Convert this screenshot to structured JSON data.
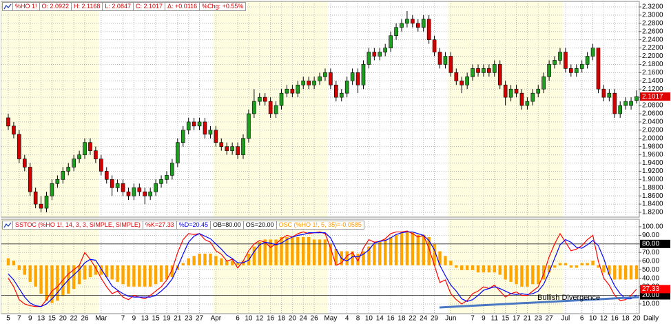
{
  "chart_data": [
    {
      "type": "candlestick",
      "header": [
        "%HO 1!",
        "O: 2.0922",
        "H: 2.1168",
        "L: 2.0847",
        "C: 2.1017",
        "Δ: +0.0116",
        "%Chg: +0.55%"
      ],
      "header_color": "#cc0000",
      "interval": "Daily",
      "categories": [
        "5",
        null,
        "7",
        null,
        "9",
        null,
        "13",
        null,
        "15",
        null,
        "20",
        null,
        "22",
        null,
        "26",
        null,
        null,
        "Mar",
        null,
        null,
        null,
        "7",
        null,
        "9",
        null,
        "13",
        null,
        "15",
        null,
        "19",
        null,
        "21",
        null,
        "23",
        null,
        "27",
        null,
        null,
        "Apr",
        null,
        null,
        null,
        "6",
        null,
        "10",
        null,
        "12",
        null,
        "16",
        null,
        "18",
        null,
        "20",
        null,
        "24",
        null,
        "26",
        null,
        null,
        "May",
        null,
        null,
        "4",
        null,
        "8",
        null,
        "10",
        null,
        "14",
        null,
        "16",
        null,
        "18",
        null,
        "22",
        null,
        "24",
        null,
        "29",
        null,
        null,
        "Jun",
        null,
        null,
        null,
        "7",
        null,
        "9",
        null,
        "11",
        null,
        "15",
        null,
        "17",
        null,
        "21",
        null,
        "23",
        null,
        "27",
        null,
        null,
        "Jul",
        null,
        null,
        "6",
        null,
        "10",
        null,
        "12",
        null,
        "16",
        null,
        "18",
        null,
        "20"
      ],
      "open": [
        2.05,
        2.03,
        2.01,
        1.95,
        1.93,
        1.87,
        1.84,
        1.83,
        1.86,
        1.89,
        1.9,
        1.92,
        1.93,
        1.95,
        1.96,
        1.99,
        1.97,
        1.95,
        1.92,
        1.9,
        1.88,
        1.89,
        1.87,
        1.86,
        1.88,
        1.87,
        1.86,
        1.87,
        1.89,
        1.9,
        1.91,
        1.94,
        1.99,
        2.02,
        2.04,
        2.03,
        2.04,
        2.01,
        2.02,
        1.99,
        1.98,
        1.97,
        1.98,
        1.96,
        2.0,
        2.06,
        2.09,
        2.1,
        2.09,
        2.06,
        2.08,
        2.11,
        2.12,
        2.11,
        2.13,
        2.14,
        2.13,
        2.14,
        2.15,
        2.16,
        2.13,
        2.1,
        2.11,
        2.14,
        2.16,
        2.13,
        2.18,
        2.21,
        2.2,
        2.21,
        2.22,
        2.25,
        2.27,
        2.28,
        2.29,
        2.28,
        2.27,
        2.29,
        2.24,
        2.21,
        2.18,
        2.2,
        2.16,
        2.14,
        2.13,
        2.15,
        2.17,
        2.16,
        2.17,
        2.16,
        2.18,
        2.13,
        2.1,
        2.12,
        2.11,
        2.08,
        2.09,
        2.11,
        2.12,
        2.15,
        2.18,
        2.19,
        2.21,
        2.17,
        2.16,
        2.17,
        2.18,
        2.2,
        2.22,
        2.12,
        2.1,
        2.11,
        2.06,
        2.08,
        2.08,
        2.0922
      ],
      "high": [
        2.06,
        2.04,
        2.02,
        1.96,
        1.94,
        1.88,
        1.86,
        1.87,
        1.9,
        1.91,
        1.93,
        1.94,
        1.96,
        1.97,
        2.0,
        2.0,
        1.98,
        1.96,
        1.93,
        1.91,
        1.9,
        1.9,
        1.88,
        1.89,
        1.89,
        1.88,
        1.88,
        1.9,
        1.91,
        1.92,
        1.95,
        2.0,
        2.03,
        2.05,
        2.05,
        2.05,
        2.05,
        2.03,
        2.03,
        2.0,
        1.99,
        1.99,
        1.99,
        2.01,
        2.07,
        2.12,
        2.11,
        2.11,
        2.1,
        2.09,
        2.12,
        2.13,
        2.13,
        2.14,
        2.15,
        2.15,
        2.15,
        2.16,
        2.17,
        2.17,
        2.14,
        2.12,
        2.15,
        2.17,
        2.17,
        2.19,
        2.22,
        2.22,
        2.22,
        2.23,
        2.26,
        2.28,
        2.29,
        2.31,
        2.3,
        2.29,
        2.3,
        2.3,
        2.25,
        2.22,
        2.21,
        2.21,
        2.17,
        2.15,
        2.16,
        2.18,
        2.18,
        2.18,
        2.18,
        2.19,
        2.19,
        2.14,
        2.13,
        2.13,
        2.12,
        2.1,
        2.12,
        2.13,
        2.16,
        2.19,
        2.2,
        2.22,
        2.22,
        2.18,
        2.18,
        2.19,
        2.21,
        2.23,
        2.22,
        2.13,
        2.12,
        2.12,
        2.09,
        2.1,
        2.1,
        2.1168
      ],
      "low": [
        2.02,
        2.0,
        1.94,
        1.92,
        1.86,
        1.83,
        1.82,
        1.82,
        1.85,
        1.88,
        1.89,
        1.91,
        1.92,
        1.94,
        1.95,
        1.96,
        1.94,
        1.91,
        1.89,
        1.86,
        1.87,
        1.86,
        1.85,
        1.85,
        1.86,
        1.84,
        1.85,
        1.86,
        1.88,
        1.89,
        1.9,
        1.93,
        1.98,
        2.01,
        2.02,
        2.02,
        2.0,
        2.0,
        1.98,
        1.97,
        1.96,
        1.96,
        1.95,
        1.95,
        1.99,
        2.05,
        2.08,
        2.08,
        2.05,
        2.05,
        2.07,
        2.1,
        2.1,
        2.1,
        2.12,
        2.12,
        2.12,
        2.13,
        2.14,
        2.12,
        2.09,
        2.09,
        2.1,
        2.13,
        2.11,
        2.12,
        2.17,
        2.19,
        2.19,
        2.2,
        2.21,
        2.24,
        2.26,
        2.27,
        2.27,
        2.26,
        2.26,
        2.23,
        2.2,
        2.17,
        2.17,
        2.15,
        2.13,
        2.11,
        2.12,
        2.14,
        2.15,
        2.15,
        2.15,
        2.15,
        2.12,
        2.08,
        2.09,
        2.1,
        2.07,
        2.07,
        2.08,
        2.1,
        2.11,
        2.14,
        2.17,
        2.18,
        2.16,
        2.15,
        2.15,
        2.16,
        2.17,
        2.19,
        2.11,
        2.09,
        2.09,
        2.05,
        2.05,
        2.07,
        2.07,
        2.0847
      ],
      "close": [
        2.03,
        2.01,
        1.95,
        1.93,
        1.87,
        1.84,
        1.83,
        1.86,
        1.89,
        1.9,
        1.92,
        1.93,
        1.95,
        1.96,
        1.99,
        1.97,
        1.95,
        1.92,
        1.9,
        1.88,
        1.89,
        1.87,
        1.86,
        1.88,
        1.87,
        1.86,
        1.87,
        1.89,
        1.9,
        1.91,
        1.94,
        1.99,
        2.02,
        2.04,
        2.03,
        2.04,
        2.01,
        2.02,
        1.99,
        1.98,
        1.97,
        1.98,
        1.96,
        2.0,
        2.06,
        2.09,
        2.1,
        2.09,
        2.06,
        2.08,
        2.11,
        2.12,
        2.11,
        2.13,
        2.14,
        2.13,
        2.14,
        2.15,
        2.16,
        2.13,
        2.1,
        2.11,
        2.14,
        2.16,
        2.13,
        2.18,
        2.21,
        2.2,
        2.21,
        2.22,
        2.25,
        2.27,
        2.28,
        2.29,
        2.28,
        2.27,
        2.29,
        2.24,
        2.21,
        2.18,
        2.2,
        2.16,
        2.14,
        2.13,
        2.15,
        2.17,
        2.16,
        2.17,
        2.16,
        2.18,
        2.13,
        2.1,
        2.12,
        2.11,
        2.08,
        2.09,
        2.11,
        2.12,
        2.15,
        2.18,
        2.19,
        2.21,
        2.17,
        2.16,
        2.17,
        2.18,
        2.2,
        2.22,
        2.12,
        2.1,
        2.11,
        2.06,
        2.08,
        2.09,
        2.0901,
        2.1017
      ],
      "up_color": "#1e9e1e",
      "down_color": "#d40000",
      "last_color": "#e00000",
      "shade_color": "#fffde0",
      "ylim": [
        1.8083,
        2.3334
      ],
      "yticks": [
        {
          "value": 1.82,
          "label": "1.8200"
        },
        {
          "value": 1.84,
          "label": "1.8400"
        },
        {
          "value": 1.86,
          "label": "1.8600"
        },
        {
          "value": 1.88,
          "label": "1.8800"
        },
        {
          "value": 1.9,
          "label": "1.9000"
        },
        {
          "value": 1.92,
          "label": "1.9200"
        },
        {
          "value": 1.94,
          "label": "1.9400"
        },
        {
          "value": 1.96,
          "label": "1.9600"
        },
        {
          "value": 1.98,
          "label": "1.9800"
        },
        {
          "value": 2.0,
          "label": "2.0000"
        },
        {
          "value": 2.02,
          "label": "2.0200"
        },
        {
          "value": 2.04,
          "label": "2.0400"
        },
        {
          "value": 2.06,
          "label": "2.0600"
        },
        {
          "value": 2.08,
          "label": "2.0800"
        },
        {
          "value": 2.1,
          "label": "2.1000"
        },
        {
          "value": 2.12,
          "label": "2.1200"
        },
        {
          "value": 2.14,
          "label": "2.1400"
        },
        {
          "value": 2.16,
          "label": "2.1600"
        },
        {
          "value": 2.18,
          "label": "2.1800"
        },
        {
          "value": 2.2,
          "label": "2.2000"
        },
        {
          "value": 2.22,
          "label": "2.2200"
        },
        {
          "value": 2.24,
          "label": "2.2400"
        },
        {
          "value": 2.26,
          "label": "2.2600"
        },
        {
          "value": 2.28,
          "label": "2.2800"
        },
        {
          "value": 2.3,
          "label": "2.3000"
        },
        {
          "value": 2.32,
          "label": "2.3200"
        }
      ],
      "grid": true
    },
    {
      "type": "stochastic",
      "legend": [
        {
          "text": "SSTOC (%HO 1!, 14, 3, 3, SIMPLE, SIMPLE)",
          "color": "#dd0000"
        },
        {
          "text": "%K=27.33",
          "color": "#dd0000"
        },
        {
          "text": "%D=20.45",
          "color": "#0000dd"
        },
        {
          "text": "OB=80.00",
          "color": "#000000"
        },
        {
          "text": "OS=20.00",
          "color": "#000000"
        },
        {
          "text": "OSC (%HO 1!, 5, 35)=-0.0585",
          "color": "#ff9900"
        }
      ],
      "series": [
        {
          "color": "#ff0000",
          "values": [
            40,
            30,
            15,
            10,
            8,
            7,
            7,
            15,
            25,
            30,
            38,
            45,
            50,
            55,
            70,
            62,
            52,
            40,
            30,
            22,
            25,
            18,
            15,
            20,
            18,
            16,
            20,
            25,
            30,
            38,
            50,
            70,
            85,
            92,
            91,
            92,
            85,
            82,
            72,
            68,
            60,
            62,
            52,
            60,
            72,
            80,
            84,
            82,
            76,
            80,
            86,
            90,
            88,
            92,
            94,
            92,
            93,
            94,
            92,
            75,
            55,
            58,
            66,
            70,
            60,
            75,
            85,
            82,
            83,
            86,
            92,
            94,
            94,
            95,
            92,
            88,
            90,
            75,
            55,
            35,
            38,
            22,
            15,
            10,
            14,
            22,
            25,
            30,
            28,
            32,
            25,
            18,
            22,
            24,
            20,
            20,
            25,
            30,
            45,
            65,
            80,
            92,
            82,
            72,
            74,
            78,
            85,
            90,
            60,
            40,
            32,
            20,
            14,
            15,
            20,
            27.33
          ]
        },
        {
          "color": "#0000ff",
          "values": [
            45,
            38,
            28,
            18,
            11,
            8,
            7,
            10,
            16,
            23,
            31,
            38,
            44,
            50,
            58,
            62,
            61,
            51,
            41,
            31,
            26,
            22,
            19,
            18,
            18,
            18,
            18,
            20,
            25,
            31,
            39,
            53,
            68,
            82,
            89,
            92,
            89,
            86,
            80,
            74,
            67,
            63,
            58,
            58,
            61,
            71,
            79,
            82,
            81,
            79,
            81,
            85,
            88,
            90,
            91,
            93,
            93,
            93,
            93,
            87,
            74,
            63,
            60,
            65,
            65,
            68,
            73,
            81,
            83,
            84,
            87,
            91,
            93,
            94,
            94,
            92,
            90,
            84,
            73,
            55,
            43,
            32,
            25,
            16,
            13,
            15,
            20,
            26,
            28,
            30,
            28,
            25,
            22,
            21,
            22,
            21,
            22,
            25,
            33,
            47,
            63,
            79,
            85,
            82,
            76,
            75,
            79,
            84,
            78,
            63,
            44,
            31,
            22,
            16,
            16,
            20.45
          ]
        },
        {
          "color": "#ffa500",
          "axis": "y2",
          "values": [
            0.03,
            0.02,
            -0.02,
            -0.04,
            -0.07,
            -0.09,
            -0.12,
            -0.15,
            -0.16,
            -0.15,
            -0.13,
            -0.12,
            -0.1,
            -0.08,
            -0.06,
            -0.05,
            -0.04,
            -0.04,
            -0.05,
            -0.06,
            -0.07,
            -0.08,
            -0.09,
            -0.09,
            -0.09,
            -0.09,
            -0.09,
            -0.08,
            -0.07,
            -0.06,
            -0.05,
            -0.02,
            0.01,
            0.03,
            0.04,
            0.05,
            0.05,
            0.05,
            0.04,
            0.03,
            0.02,
            0.02,
            0.01,
            0.02,
            0.05,
            0.08,
            0.1,
            0.11,
            0.11,
            0.11,
            0.12,
            0.12,
            0.12,
            0.12,
            0.12,
            0.12,
            0.11,
            0.11,
            0.11,
            0.09,
            0.07,
            0.06,
            0.06,
            0.06,
            0.05,
            0.06,
            0.08,
            0.09,
            0.1,
            0.11,
            0.12,
            0.13,
            0.14,
            0.14,
            0.14,
            0.13,
            0.13,
            0.12,
            0.09,
            0.06,
            0.04,
            0.02,
            -0.01,
            -0.02,
            -0.02,
            -0.02,
            -0.03,
            -0.03,
            -0.03,
            -0.03,
            -0.04,
            -0.06,
            -0.07,
            -0.08,
            -0.09,
            -0.09,
            -0.08,
            -0.08,
            -0.06,
            -0.03,
            -0.01,
            0.01,
            0.01,
            -0.01,
            -0.01,
            0.01,
            0.01,
            0.02,
            -0.01,
            -0.03,
            -0.04,
            -0.06,
            -0.06,
            -0.06,
            -0.06,
            -0.0585
          ]
        }
      ],
      "levels": [
        {
          "value": 80,
          "label": "80.00"
        },
        {
          "value": 20,
          "label": "20.00"
        }
      ],
      "ylim": [
        -1.3,
        108.8
      ],
      "yticks": [
        {
          "value": 10,
          "label": "10.00"
        },
        {
          "value": 20,
          "label": "20.00"
        },
        {
          "value": 30,
          "label": "30.00"
        },
        {
          "value": 40,
          "label": "40.00"
        },
        {
          "value": 50,
          "label": "50.00"
        },
        {
          "value": 60,
          "label": "60.00"
        },
        {
          "value": 70,
          "label": "70.00"
        },
        {
          "value": 80,
          "label": "80.00"
        },
        {
          "value": 90,
          "label": "90.00"
        },
        {
          "value": 100,
          "label": "100.00"
        }
      ],
      "y2lim": [
        -0.205,
        0.196
      ],
      "annotation": "Bullish Divergence",
      "annotation_color": "#4a78c2",
      "grid": true
    }
  ]
}
